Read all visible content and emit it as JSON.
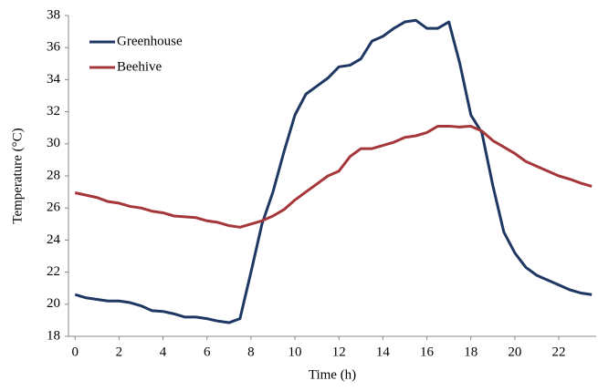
{
  "chart_data": {
    "type": "line",
    "x_label": "Time (h)",
    "y_label": "Temperature (°C)",
    "x": [
      0,
      0.5,
      1,
      1.5,
      2,
      2.5,
      3,
      3.5,
      4,
      4.5,
      5,
      5.5,
      6,
      6.5,
      7,
      7.5,
      8,
      8.5,
      9,
      9.5,
      10,
      10.5,
      11,
      11.5,
      12,
      12.5,
      13,
      13.5,
      14,
      14.5,
      15,
      15.5,
      16,
      16.5,
      17,
      17.5,
      18,
      18.5,
      19,
      19.5,
      20,
      20.5,
      21,
      21.5,
      22,
      22.5,
      23,
      23.5
    ],
    "series": [
      {
        "name": "Greenhouse",
        "color": "#1f3763",
        "values": [
          20.6,
          20.4,
          20.3,
          20.2,
          20.2,
          20.1,
          19.9,
          19.6,
          19.55,
          19.4,
          19.2,
          19.2,
          19.1,
          18.95,
          18.85,
          19.1,
          22.0,
          25.0,
          27.0,
          29.5,
          31.8,
          33.1,
          33.6,
          34.1,
          34.8,
          34.9,
          35.3,
          36.4,
          36.7,
          37.2,
          37.6,
          37.7,
          37.2,
          37.2,
          37.6,
          35.0,
          31.8,
          30.7,
          27.4,
          24.5,
          23.2,
          22.3,
          21.8,
          21.5,
          21.2,
          20.9,
          20.7,
          20.6
        ]
      },
      {
        "name": "Beehive",
        "color": "#a5373a",
        "values": [
          26.95,
          26.8,
          26.65,
          26.4,
          26.3,
          26.1,
          26.0,
          25.8,
          25.7,
          25.5,
          25.45,
          25.4,
          25.2,
          25.1,
          24.9,
          24.8,
          25.0,
          25.2,
          25.5,
          25.9,
          26.5,
          27.0,
          27.5,
          28.0,
          28.3,
          29.2,
          29.7,
          29.7,
          29.9,
          30.1,
          30.4,
          30.5,
          30.7,
          31.1,
          31.1,
          31.05,
          31.1,
          30.8,
          30.2,
          29.8,
          29.4,
          28.9,
          28.6,
          28.3,
          28.0,
          27.8,
          27.55,
          27.35
        ]
      }
    ],
    "xlim": [
      -0.3,
      23.7
    ],
    "xticks": [
      0,
      2,
      4,
      6,
      8,
      10,
      12,
      14,
      16,
      18,
      20,
      22
    ],
    "ylim": [
      18,
      38
    ],
    "yticks": [
      18,
      20,
      22,
      24,
      26,
      28,
      30,
      32,
      34,
      36,
      38
    ],
    "grid": false,
    "legend": "upper left"
  }
}
